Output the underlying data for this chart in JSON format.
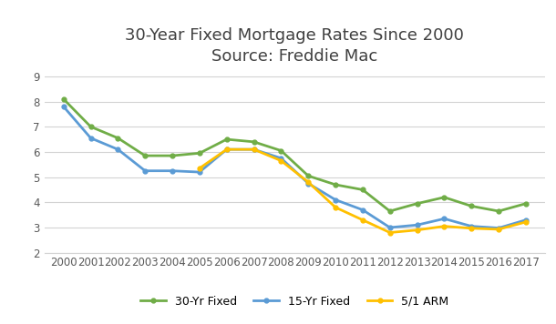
{
  "title": "30-Year Fixed Mortgage Rates Since 2000\nSource: Freddie Mac",
  "years": [
    2000,
    2001,
    2002,
    2003,
    2004,
    2005,
    2006,
    2007,
    2008,
    2009,
    2010,
    2011,
    2012,
    2013,
    2014,
    2015,
    2016,
    2017
  ],
  "fixed30": [
    8.1,
    7.0,
    6.55,
    5.85,
    5.85,
    5.95,
    6.5,
    6.4,
    6.05,
    5.05,
    4.7,
    4.5,
    3.65,
    3.95,
    4.2,
    3.85,
    3.65,
    3.95
  ],
  "fixed15": [
    7.8,
    6.55,
    6.1,
    5.25,
    5.25,
    5.2,
    6.1,
    6.1,
    5.75,
    4.75,
    4.1,
    3.7,
    3.0,
    3.1,
    3.35,
    3.05,
    2.98,
    3.3
  ],
  "arm51": [
    null,
    null,
    null,
    null,
    null,
    5.35,
    6.1,
    6.1,
    5.65,
    4.8,
    3.8,
    3.3,
    2.8,
    2.9,
    3.05,
    2.97,
    2.93,
    3.22
  ],
  "color_30yr": "#70ad47",
  "color_15yr": "#5b9bd5",
  "color_arm": "#ffc000",
  "ylim": [
    2,
    9.2
  ],
  "yticks": [
    2,
    3,
    4,
    5,
    6,
    7,
    8,
    9
  ],
  "legend_labels": [
    "30-Yr Fixed",
    "15-Yr Fixed",
    "5/1 ARM"
  ],
  "figsize": [
    6.1,
    3.56
  ],
  "dpi": 100,
  "title_fontsize": 13,
  "tick_fontsize": 8.5,
  "line_width": 2.0,
  "marker_size": 3.5
}
